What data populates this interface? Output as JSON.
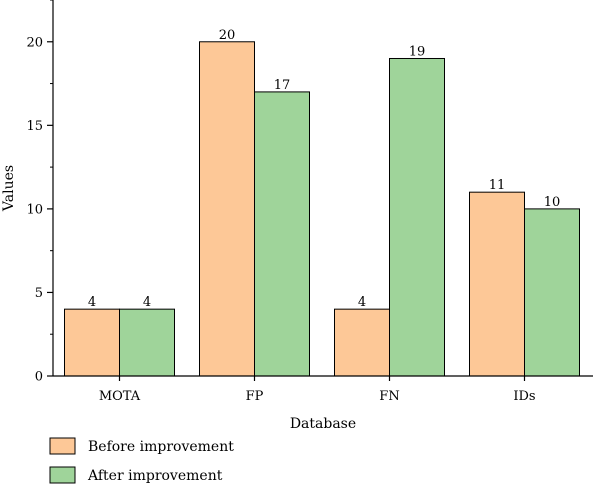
{
  "chart_data": {
    "type": "bar",
    "title": "",
    "xlabel": "Database",
    "ylabel": "Values",
    "categories": [
      "MOTA",
      "FP",
      "FN",
      "IDs"
    ],
    "series": [
      {
        "name": "Before improvement",
        "values": [
          4,
          20,
          4,
          11
        ],
        "color": "#fdc897"
      },
      {
        "name": "After improvement",
        "values": [
          4,
          17,
          19,
          10
        ],
        "color": "#9fd49a"
      }
    ],
    "ylim": [
      0,
      22.5
    ],
    "yticks": [
      0,
      5,
      10,
      15,
      20
    ],
    "grid": false,
    "legend_position": "bottom-left"
  }
}
